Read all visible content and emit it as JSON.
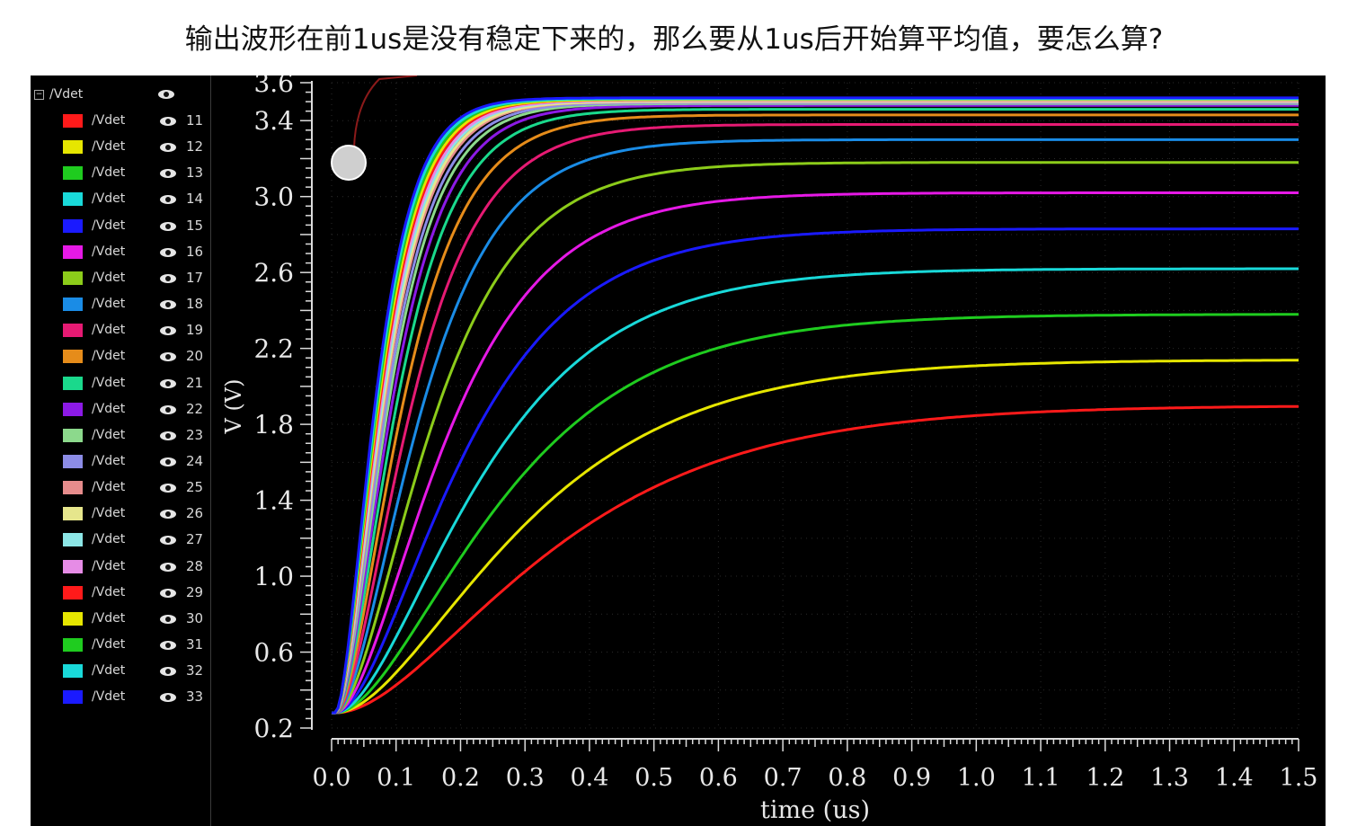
{
  "question": "输出波形在前1us是没有稳定下来的，那么要从1us后开始算平均值，要怎么算?",
  "legend": {
    "group_label": "/Vdet",
    "group_toggle": "−",
    "items": [
      {
        "label": "/Vdet",
        "num": "11",
        "color": "#ff1a1a"
      },
      {
        "label": "/Vdet",
        "num": "12",
        "color": "#e6e600"
      },
      {
        "label": "/Vdet",
        "num": "13",
        "color": "#1fcc1f"
      },
      {
        "label": "/Vdet",
        "num": "14",
        "color": "#19d9d9"
      },
      {
        "label": "/Vdet",
        "num": "15",
        "color": "#1a1aff"
      },
      {
        "label": "/Vdet",
        "num": "16",
        "color": "#e619e6"
      },
      {
        "label": "/Vdet",
        "num": "17",
        "color": "#8ccc1a"
      },
      {
        "label": "/Vdet",
        "num": "18",
        "color": "#1a8ce6"
      },
      {
        "label": "/Vdet",
        "num": "19",
        "color": "#e61a73"
      },
      {
        "label": "/Vdet",
        "num": "20",
        "color": "#e68c1a"
      },
      {
        "label": "/Vdet",
        "num": "21",
        "color": "#1ad98c"
      },
      {
        "label": "/Vdet",
        "num": "22",
        "color": "#8c1ae6"
      },
      {
        "label": "/Vdet",
        "num": "23",
        "color": "#8cd98c"
      },
      {
        "label": "/Vdet",
        "num": "24",
        "color": "#8c8ce6"
      },
      {
        "label": "/Vdet",
        "num": "25",
        "color": "#e68c8c"
      },
      {
        "label": "/Vdet",
        "num": "26",
        "color": "#e6e68c"
      },
      {
        "label": "/Vdet",
        "num": "27",
        "color": "#8ce6e6"
      },
      {
        "label": "/Vdet",
        "num": "28",
        "color": "#e68ce6"
      },
      {
        "label": "/Vdet",
        "num": "29",
        "color": "#ff1a1a"
      },
      {
        "label": "/Vdet",
        "num": "30",
        "color": "#e6e600"
      },
      {
        "label": "/Vdet",
        "num": "31",
        "color": "#1fcc1f"
      },
      {
        "label": "/Vdet",
        "num": "32",
        "color": "#19d9d9"
      },
      {
        "label": "/Vdet",
        "num": "33",
        "color": "#1a1aff"
      }
    ]
  },
  "chart_data": {
    "type": "line",
    "xlabel": "time (us)",
    "ylabel": "V (V)",
    "xlim": [
      0,
      1.5
    ],
    "ylim": [
      0.2,
      3.6
    ],
    "xticks": [
      "0.0",
      "0.1",
      "0.2",
      "0.3",
      "0.4",
      "0.5",
      "0.6",
      "0.7",
      "0.8",
      "0.9",
      "1.0",
      "1.1",
      "1.2",
      "1.3",
      "1.4",
      "1.5"
    ],
    "yticks": [
      "0.2",
      "0.6",
      "1.0",
      "1.4",
      "1.8",
      "2.2",
      "2.6",
      "3.0",
      "3.4",
      "3.6"
    ],
    "grid": true,
    "initial_value": 0.28,
    "series": [
      {
        "name": "11",
        "color": "#ff1a1a",
        "final": 1.9,
        "tau": 0.19
      },
      {
        "name": "12",
        "color": "#e6e600",
        "final": 2.14,
        "tau": 0.165
      },
      {
        "name": "13",
        "color": "#1fcc1f",
        "final": 2.38,
        "tau": 0.145
      },
      {
        "name": "14",
        "color": "#19d9d9",
        "final": 2.62,
        "tau": 0.128
      },
      {
        "name": "15",
        "color": "#1a1aff",
        "final": 2.83,
        "tau": 0.112
      },
      {
        "name": "16",
        "color": "#e619e6",
        "final": 3.02,
        "tau": 0.098
      },
      {
        "name": "17",
        "color": "#8ccc1a",
        "final": 3.18,
        "tau": 0.086
      },
      {
        "name": "18",
        "color": "#1a8ce6",
        "final": 3.3,
        "tau": 0.076
      },
      {
        "name": "19",
        "color": "#e61a73",
        "final": 3.38,
        "tau": 0.068
      },
      {
        "name": "20",
        "color": "#e68c1a",
        "final": 3.43,
        "tau": 0.061
      },
      {
        "name": "21",
        "color": "#1ad98c",
        "final": 3.46,
        "tau": 0.056
      },
      {
        "name": "22",
        "color": "#8c1ae6",
        "final": 3.48,
        "tau": 0.052
      },
      {
        "name": "23",
        "color": "#8cd98c",
        "final": 3.49,
        "tau": 0.049
      },
      {
        "name": "24",
        "color": "#8c8ce6",
        "final": 3.495,
        "tau": 0.047
      },
      {
        "name": "25",
        "color": "#e68c8c",
        "final": 3.5,
        "tau": 0.045
      },
      {
        "name": "26",
        "color": "#e6e68c",
        "final": 3.5,
        "tau": 0.044
      },
      {
        "name": "27",
        "color": "#8ce6e6",
        "final": 3.505,
        "tau": 0.043
      },
      {
        "name": "28",
        "color": "#e68ce6",
        "final": 3.505,
        "tau": 0.042
      },
      {
        "name": "29",
        "color": "#ff1a1a",
        "final": 3.51,
        "tau": 0.041
      },
      {
        "name": "30",
        "color": "#e6e600",
        "final": 3.51,
        "tau": 0.04
      },
      {
        "name": "31",
        "color": "#1fcc1f",
        "final": 3.515,
        "tau": 0.039
      },
      {
        "name": "32",
        "color": "#19d9d9",
        "final": 3.515,
        "tau": 0.038
      },
      {
        "name": "33",
        "color": "#1a1aff",
        "final": 3.52,
        "tau": 0.037
      }
    ]
  }
}
